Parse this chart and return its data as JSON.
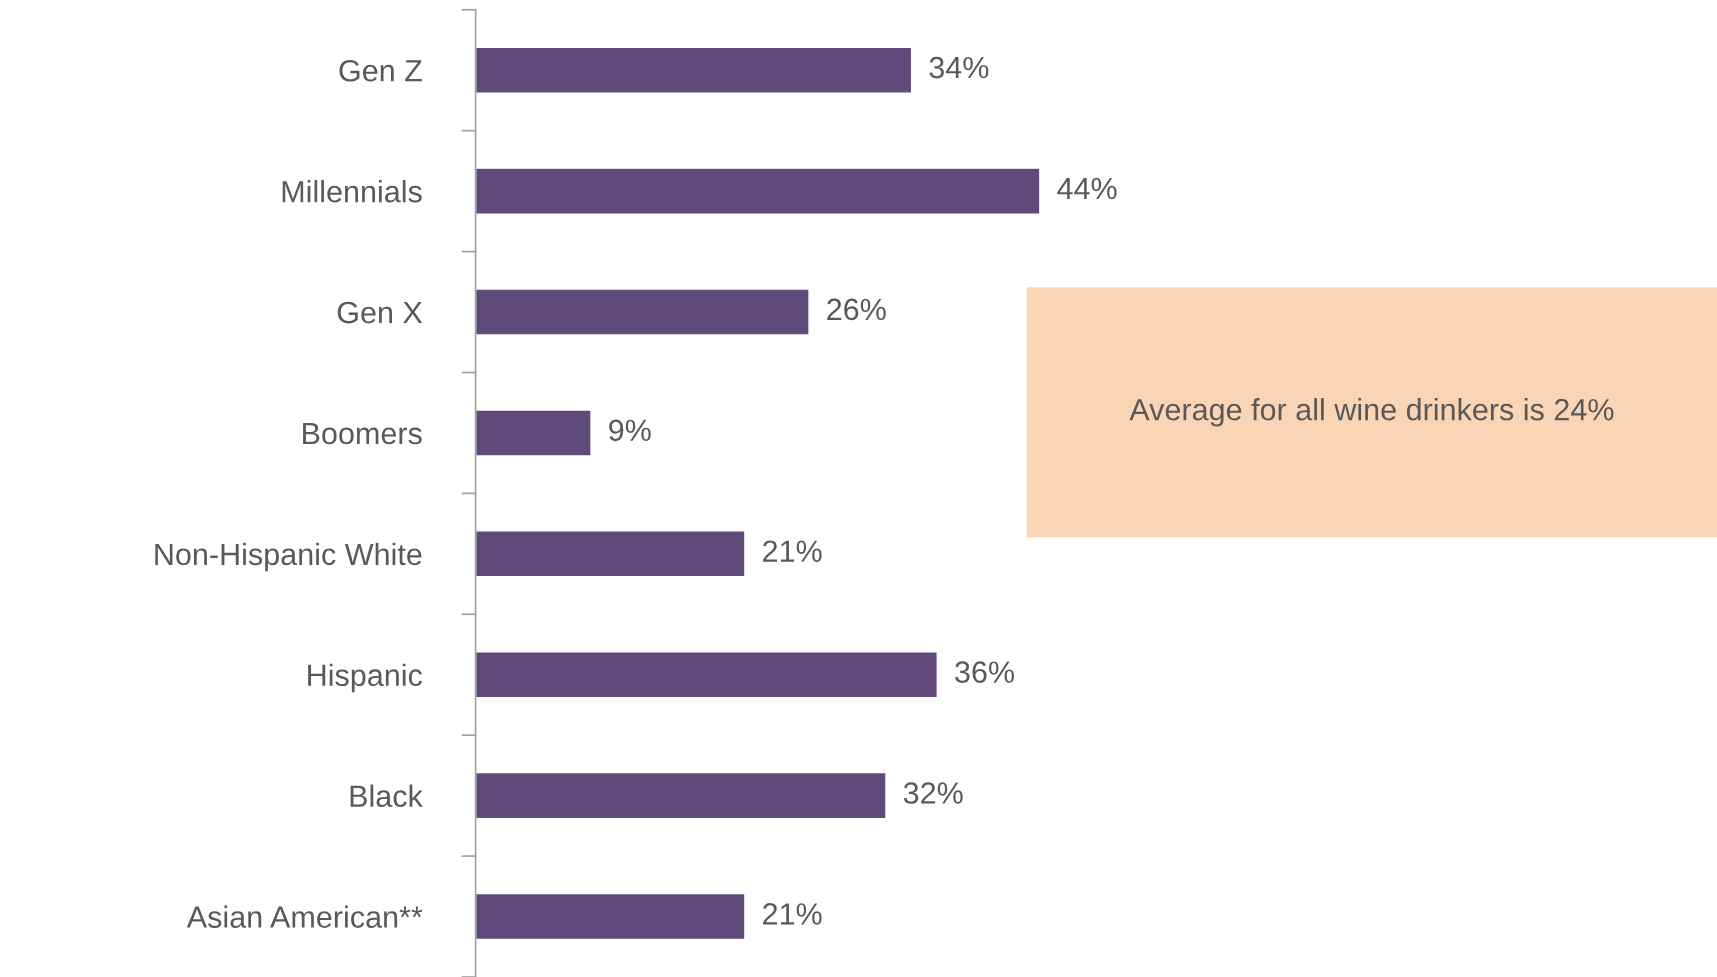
{
  "chart_data": {
    "type": "bar",
    "orientation": "horizontal",
    "categories": [
      "Gen Z",
      "Millennials",
      "Gen X",
      "Boomers",
      "Non-Hispanic White",
      "Hispanic",
      "Black",
      "Asian American**"
    ],
    "values": [
      34,
      44,
      26,
      9,
      21,
      36,
      32,
      21
    ],
    "color": "#604a7b",
    "value_labels": [
      "34%",
      "44%",
      "26%",
      "9%",
      "21%",
      "36%",
      "32%",
      "21%"
    ],
    "annotations": [
      "Average for all wine drinkers is 24%"
    ],
    "grid": false,
    "legend": false
  }
}
